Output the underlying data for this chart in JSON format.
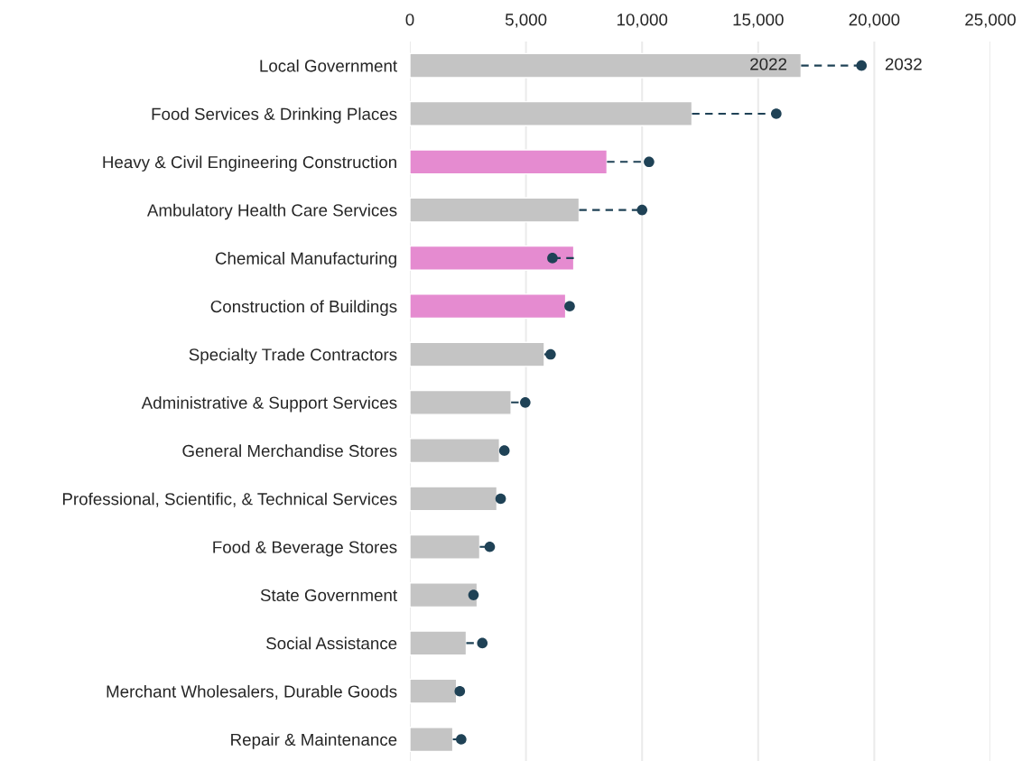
{
  "chart_data": {
    "type": "bar",
    "orientation": "horizontal",
    "categories": [
      "Local Government",
      "Food Services & Drinking Places",
      "Heavy & Civil Engineering Construction",
      "Ambulatory Health Care Services",
      "Chemical Manufacturing",
      "Construction of Buildings",
      "Specialty Trade Contractors",
      "Administrative & Support Services",
      "General Merchandise Stores",
      "Professional, Scientific, & Technical Services",
      "Food & Beverage Stores",
      "State Government",
      "Social Assistance",
      "Merchant Wholesalers, Durable Goods",
      "Repair & Maintenance"
    ],
    "series": [
      {
        "name": "2022",
        "colors": [
          "#c4c4c4",
          "#c4c4c4",
          "#e58bd0",
          "#c4c4c4",
          "#e58bd0",
          "#e58bd0",
          "#c4c4c4",
          "#c4c4c4",
          "#c4c4c4",
          "#c4c4c4",
          "#c4c4c4",
          "#c4c4c4",
          "#c4c4c4",
          "#c4c4c4",
          "#c4c4c4"
        ],
        "values": [
          16850,
          12150,
          8490,
          7290,
          7060,
          6710,
          5790,
          4360,
          3860,
          3750,
          3010,
          2900,
          2430,
          2010,
          1850
        ]
      },
      {
        "name": "2032",
        "type": "scatter",
        "color": "#1f4256",
        "marker": "circle",
        "line_style": "dashed",
        "values": [
          19450,
          15780,
          10300,
          10000,
          6140,
          6880,
          6060,
          4970,
          4070,
          3910,
          3440,
          2740,
          3120,
          2150,
          2210
        ]
      }
    ],
    "xlim": [
      0,
      25000
    ],
    "xticks": [
      {
        "value": 0,
        "label": "0"
      },
      {
        "value": 5000,
        "label": "5,000"
      },
      {
        "value": 10000,
        "label": "10,000"
      },
      {
        "value": 15000,
        "label": "15,000"
      },
      {
        "value": 20000,
        "label": "20,000"
      },
      {
        "value": 25000,
        "label": "25,000"
      }
    ],
    "grid": "x",
    "legend": "top right"
  }
}
